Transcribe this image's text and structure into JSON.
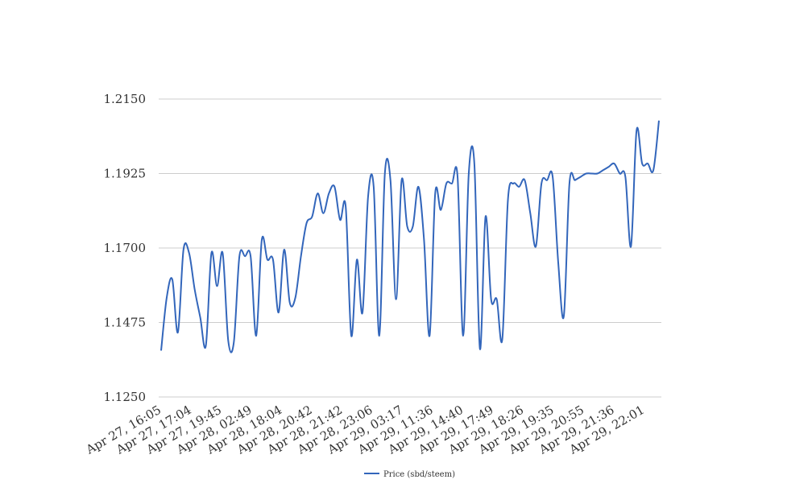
{
  "chart_data": {
    "type": "line",
    "ylim": [
      1.125,
      1.215
    ],
    "grid": true,
    "legend_position": "bottom-center",
    "y_ticks": [
      "1.1250",
      "1.1475",
      "1.1700",
      "1.1925",
      "1.2150"
    ],
    "x_tick_labels": [
      "Apr 27, 16:05",
      "Apr 27, 17:04",
      "Apr 27, 19:45",
      "Apr 28, 02:49",
      "Apr 28, 18:04",
      "Apr 28, 20:42",
      "Apr 28, 21:42",
      "Apr 28, 23:06",
      "Apr 29, 03:17",
      "Apr 29, 11:36",
      "Apr 29, 14:40",
      "Apr 29, 17:49",
      "Apr 29, 18:26",
      "Apr 29, 19:35",
      "Apr 29, 20:55",
      "Apr 29, 21:36",
      "Apr 29, 22:01"
    ],
    "series": [
      {
        "name": "Price (sbd/steem)",
        "color": "#3366bb",
        "values": [
          1.139,
          1.155,
          1.1605,
          1.1445,
          1.1695,
          1.1685,
          1.1575,
          1.149,
          1.1405,
          1.1685,
          1.1585,
          1.1685,
          1.142,
          1.1415,
          1.1675,
          1.1675,
          1.1675,
          1.1435,
          1.1725,
          1.1665,
          1.1665,
          1.1505,
          1.1695,
          1.1535,
          1.155,
          1.1675,
          1.1775,
          1.1795,
          1.1865,
          1.1805,
          1.1865,
          1.1885,
          1.1785,
          1.1825,
          1.1435,
          1.1665,
          1.1505,
          1.1855,
          1.1885,
          1.1435,
          1.1925,
          1.1905,
          1.1545,
          1.1905,
          1.1765,
          1.1765,
          1.1885,
          1.1725,
          1.1435,
          1.1865,
          1.1815,
          1.1895,
          1.1895,
          1.1915,
          1.1435,
          1.1925,
          1.1955,
          1.1395,
          1.1795,
          1.1545,
          1.1545,
          1.1425,
          1.1845,
          1.1895,
          1.1885,
          1.1905,
          1.1805,
          1.1705,
          1.1895,
          1.1905,
          1.1915,
          1.1655,
          1.1495,
          1.1895,
          1.1905,
          1.1915,
          1.1925,
          1.1925,
          1.1925,
          1.1935,
          1.1945,
          1.1955,
          1.1925,
          1.1915,
          1.1705,
          1.2055,
          1.1955,
          1.1955,
          1.1935,
          1.2085
        ]
      }
    ]
  }
}
